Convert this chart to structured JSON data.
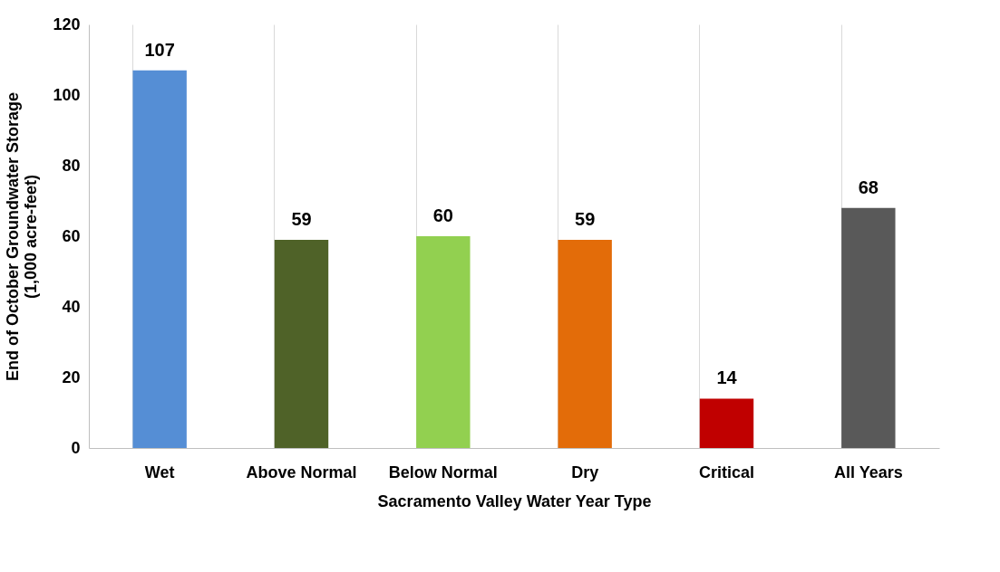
{
  "chart_data": {
    "type": "bar",
    "xlabel": "Sacramento Valley Water Year Type",
    "ylabel": "End of October Groundwater Storage\n(1,000 acre-feet)",
    "categories": [
      "Wet",
      "Above Normal",
      "Below Normal",
      "Dry",
      "Critical",
      "All Years"
    ],
    "values": [
      107,
      59,
      60,
      59,
      14,
      68
    ],
    "colors": [
      "#558ed5",
      "#4f6228",
      "#92d050",
      "#e36c09",
      "#c00000",
      "#595959"
    ],
    "ylim": [
      0,
      120
    ],
    "yticks": [
      0,
      20,
      40,
      60,
      80,
      100,
      120
    ],
    "grid": "x",
    "data_labels": true
  }
}
